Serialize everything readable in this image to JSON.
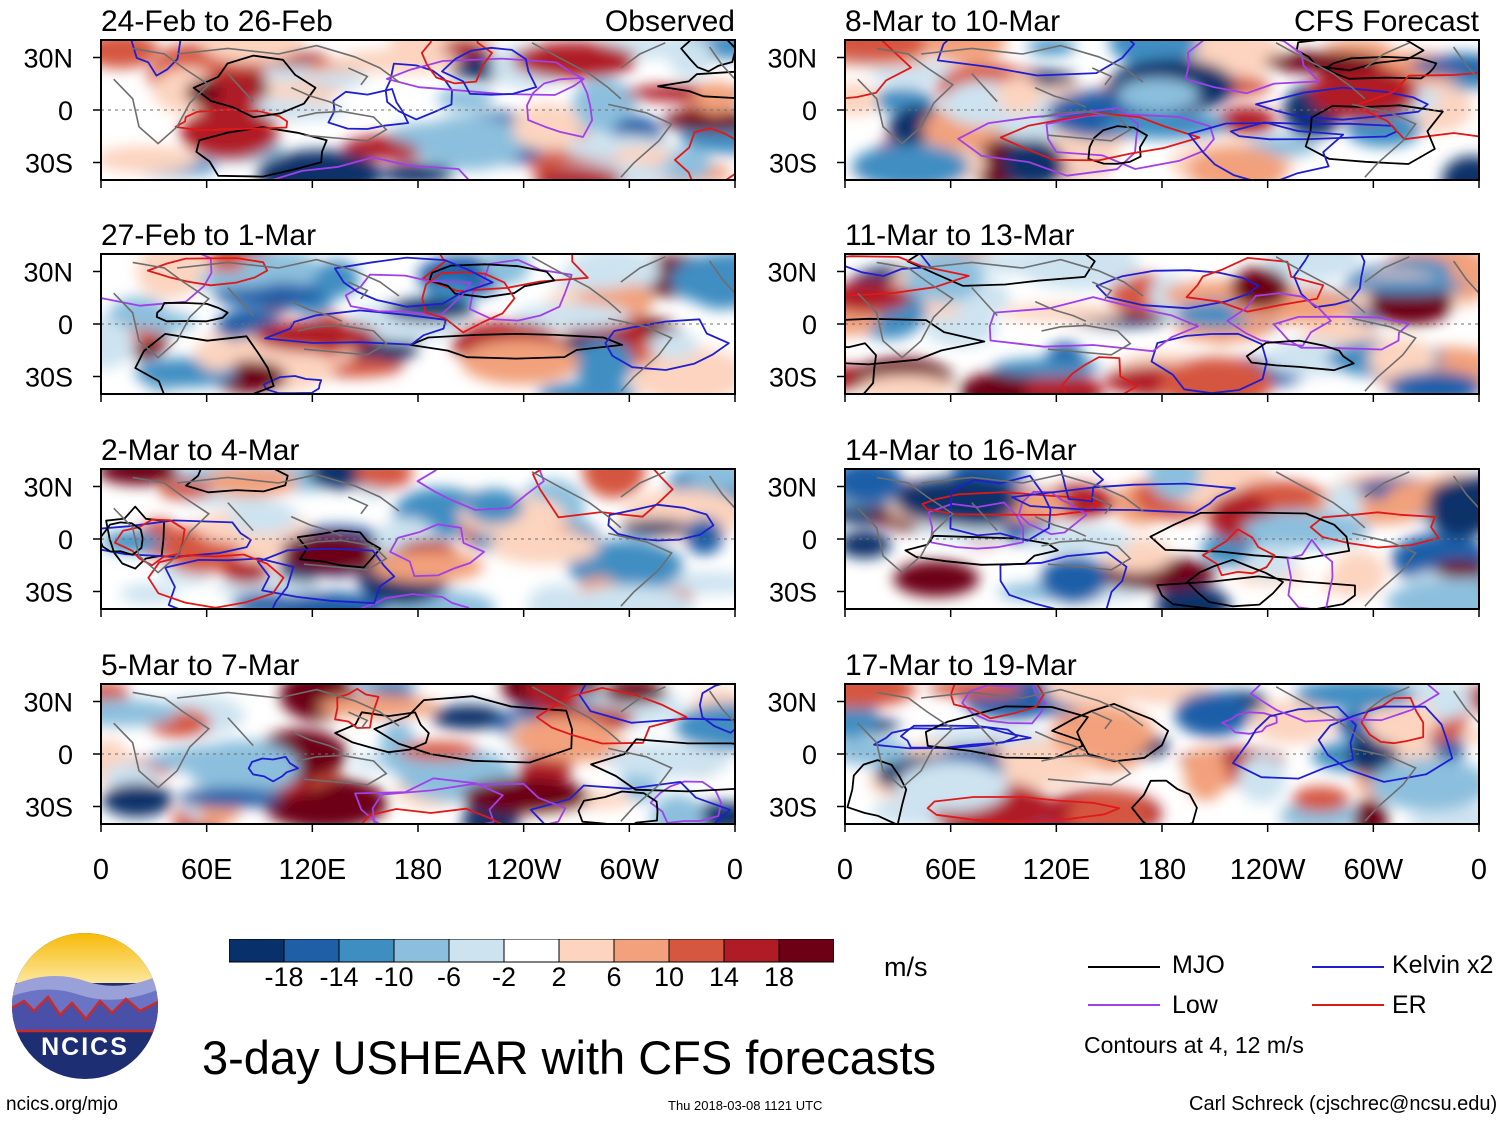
{
  "colors": {
    "levels": [
      "#08306b",
      "#1f5fa8",
      "#3f8ec2",
      "#8cbfdd",
      "#cde3f0",
      "#ffffff",
      "#fcd4bf",
      "#f2a17c",
      "#d5573f",
      "#b01c25",
      "#6d0014"
    ],
    "mjo": "#000000",
    "kelvin": "#1f1fcf",
    "low": "#a040e8",
    "er": "#e01818",
    "coast": "#6e6e6e"
  },
  "chart_data": {
    "type": "heatmap",
    "title": "3-day USHEAR with CFS forecasts",
    "variable": "USHEAR",
    "units": "m/s",
    "x_ticks": [
      "0",
      "60E",
      "120E",
      "180",
      "120W",
      "60W",
      "0"
    ],
    "y_ticks": [
      "30N",
      "0",
      "30S"
    ],
    "xlim_deg_east": [
      0,
      360
    ],
    "ylim_deg_north": [
      -40,
      40
    ],
    "colorbar_ticks": [
      "-18",
      "-14",
      "-10",
      "-6",
      "-2",
      "2",
      "6",
      "10",
      "14",
      "18"
    ],
    "colorbar_levels": [
      -18,
      -14,
      -10,
      -6,
      -2,
      2,
      6,
      10,
      14,
      18
    ],
    "panels": [
      {
        "period": "24-Feb to 26-Feb",
        "tag": "Observed",
        "column": "observed",
        "row": 0
      },
      {
        "period": "27-Feb to 1-Mar",
        "tag": "",
        "column": "observed",
        "row": 1
      },
      {
        "period": "2-Mar to 4-Mar",
        "tag": "",
        "column": "observed",
        "row": 2
      },
      {
        "period": "5-Mar to 7-Mar",
        "tag": "",
        "column": "observed",
        "row": 3
      },
      {
        "period": "8-Mar to 10-Mar",
        "tag": "CFS Forecast",
        "column": "forecast",
        "row": 0
      },
      {
        "period": "11-Mar to 13-Mar",
        "tag": "",
        "column": "forecast",
        "row": 1
      },
      {
        "period": "14-Mar to 16-Mar",
        "tag": "",
        "column": "forecast",
        "row": 2
      },
      {
        "period": "17-Mar to 19-Mar",
        "tag": "",
        "column": "forecast",
        "row": 3
      }
    ],
    "contours": {
      "legend": [
        "MJO",
        "Kelvin x2",
        "Low",
        "ER"
      ],
      "levels_text": "Contours at 4, 12 m/s"
    }
  },
  "legend": {
    "mjo": "MJO",
    "kelvin": "Kelvin x2",
    "low": "Low",
    "er": "ER"
  },
  "logo": {
    "text": "NCICS"
  },
  "footer": {
    "url": "ncics.org/mjo",
    "timestamp": "Thu 2018-03-08 1121 UTC",
    "credit": "Carl Schreck (cjschrec@ncsu.edu)"
  }
}
